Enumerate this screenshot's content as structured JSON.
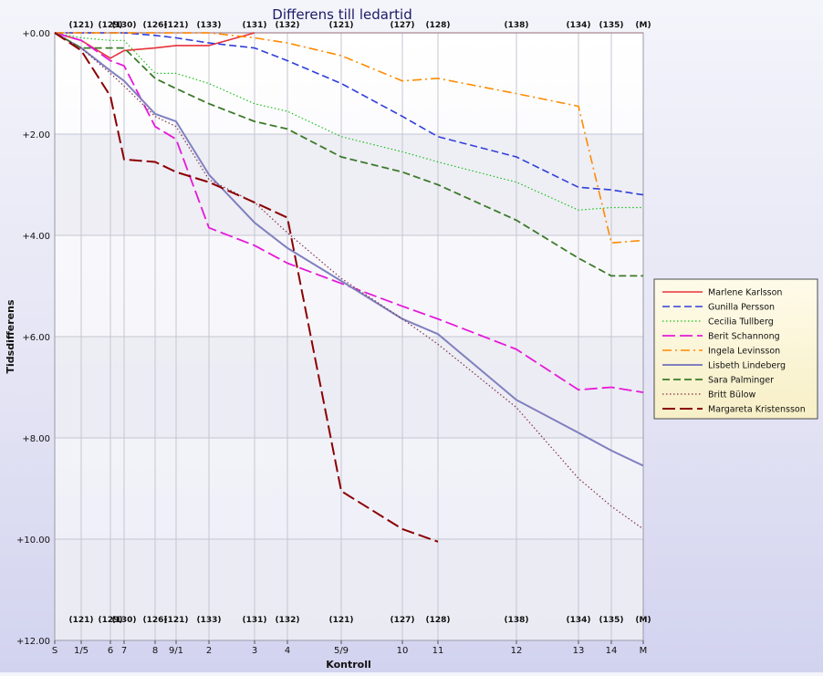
{
  "chart_data": {
    "type": "line",
    "title": "Differens till ledartid",
    "xlabel": "Kontroll",
    "ylabel": "Tidsdifferens",
    "y_range": [
      0,
      12
    ],
    "y_inverted": true,
    "y_ticks": [
      0,
      2,
      4,
      6,
      8,
      10,
      12
    ],
    "y_tick_labels": [
      "+0.00",
      "+2.00",
      "+4.00",
      "+6.00",
      "+8.00",
      "+10.00",
      "+12.00"
    ],
    "controls": [
      "S",
      "1/5",
      "6",
      "7",
      "8",
      "9/1",
      "2",
      "3",
      "4",
      "5/9",
      "10",
      "11",
      "12",
      "13",
      "14",
      "M"
    ],
    "control_codes": [
      "",
      "(121)",
      "(129)",
      "(130)",
      "(126)",
      "(121)",
      "(133)",
      "(131)",
      "(132)",
      "(121)",
      "(127)",
      "(128)",
      "(138)",
      "(134)",
      "(135)",
      "(M)"
    ],
    "grid": true,
    "legend_position": "right",
    "series": [
      {
        "name": "Marlene Karlsson",
        "color": "#e8323a",
        "dash": "solid",
        "width": 1.6,
        "values": [
          0.0,
          0.15,
          0.5,
          0.35,
          0.3,
          0.25,
          0.25,
          0.0,
          null,
          null,
          null,
          null,
          null,
          null,
          null,
          null
        ]
      },
      {
        "name": "Gunilla Persson",
        "color": "#2f3fd9",
        "dash": "dash",
        "width": 1.6,
        "values": [
          0.0,
          0.0,
          0.0,
          0.0,
          0.05,
          0.1,
          0.2,
          0.3,
          0.55,
          1.0,
          1.65,
          2.05,
          2.45,
          3.05,
          3.1,
          3.2
        ]
      },
      {
        "name": "Cecilia Tullberg",
        "color": "#1bbf1b",
        "dash": "dot",
        "width": 1.2,
        "values": [
          0.0,
          0.1,
          0.15,
          0.15,
          0.8,
          0.8,
          1.0,
          1.4,
          1.55,
          2.05,
          2.35,
          2.55,
          2.95,
          3.5,
          3.45,
          3.45
        ]
      },
      {
        "name": "Berit Schannong",
        "color": "#e619d9",
        "dash": "longdash",
        "width": 1.8,
        "values": [
          0.0,
          0.15,
          0.55,
          0.65,
          1.85,
          2.1,
          3.85,
          4.2,
          4.55,
          4.95,
          5.4,
          5.65,
          6.25,
          7.05,
          7.0,
          7.1
        ]
      },
      {
        "name": "Ingela Levinsson",
        "color": "#ff8a00",
        "dash": "dashdot",
        "width": 1.6,
        "values": [
          0.0,
          0.0,
          0.0,
          0.0,
          0.0,
          0.0,
          0.0,
          0.1,
          0.2,
          0.45,
          0.95,
          0.9,
          1.2,
          1.45,
          4.15,
          4.1
        ]
      },
      {
        "name": "Lisbeth Lindeberg",
        "color": "#8080bf",
        "dash": "solid",
        "width": 2.0,
        "values": [
          0.0,
          0.3,
          0.75,
          0.95,
          1.6,
          1.75,
          2.8,
          3.75,
          4.25,
          4.9,
          5.65,
          5.95,
          7.25,
          7.9,
          8.25,
          8.55
        ]
      },
      {
        "name": "Sara Palminger",
        "color": "#3c7a28",
        "dash": "dash",
        "width": 1.8,
        "values": [
          0.0,
          0.3,
          0.3,
          0.3,
          0.9,
          1.1,
          1.4,
          1.75,
          1.9,
          2.45,
          2.75,
          3.0,
          3.7,
          4.45,
          4.8,
          4.8
        ]
      },
      {
        "name": "Britt Bülow",
        "color": "#80304a",
        "dash": "dot",
        "width": 1.2,
        "values": [
          0.0,
          0.3,
          0.8,
          1.05,
          1.65,
          1.85,
          2.9,
          3.35,
          3.95,
          4.85,
          5.65,
          6.15,
          7.4,
          8.8,
          9.35,
          9.8
        ]
      },
      {
        "name": "Margareta Kristensson",
        "color": "#8b0000",
        "dash": "longdash",
        "width": 2.0,
        "values": [
          0.0,
          0.35,
          1.25,
          2.5,
          2.55,
          2.75,
          2.95,
          3.35,
          3.65,
          9.05,
          9.8,
          10.05,
          null,
          null,
          null,
          null
        ]
      }
    ]
  }
}
